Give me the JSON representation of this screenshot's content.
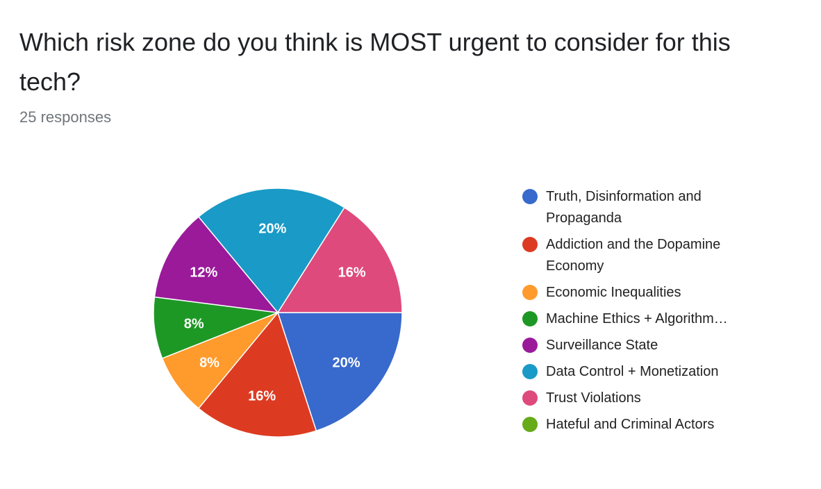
{
  "title": "Which risk zone do you think is MOST urgent to consider for this tech?",
  "subtitle": "25 responses",
  "chart_data": {
    "type": "pie",
    "start_angle": "3 o'clock, clockwise",
    "legend_position": "right",
    "slices": [
      {
        "label": "Truth, Disinformation and Propaganda",
        "value": 20,
        "data_label": "20%",
        "color": "#3869cc"
      },
      {
        "label": "Addiction and the Dopamine Economy",
        "value": 16,
        "data_label": "16%",
        "color": "#dc3b22"
      },
      {
        "label": "Economic Inequalities",
        "value": 8,
        "data_label": "8%",
        "color": "#ff9a2c"
      },
      {
        "label": "Machine Ethics + Algorithm…",
        "value": 8,
        "data_label": "8%",
        "color": "#1e9825"
      },
      {
        "label": "Surveillance State",
        "value": 12,
        "data_label": "12%",
        "color": "#9a1a9a"
      },
      {
        "label": "Data Control + Monetization",
        "value": 20,
        "data_label": "20%",
        "color": "#1a9ac6"
      },
      {
        "label": "Trust Violations",
        "value": 16,
        "data_label": "16%",
        "color": "#de4a7b"
      },
      {
        "label": "Hateful and Criminal Actors",
        "value": 0,
        "data_label": "",
        "color": "#67aa1a"
      }
    ]
  }
}
